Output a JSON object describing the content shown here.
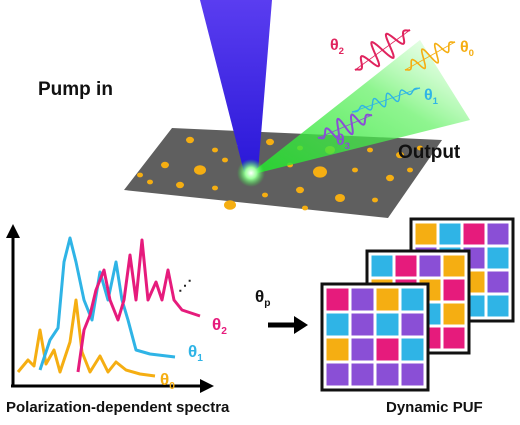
{
  "labels": {
    "pump": "Pump in",
    "output": "Output",
    "spectra_caption": "Polarization-dependent spectra",
    "puf_caption": "Dynamic PUF"
  },
  "output_angles": [
    {
      "symbol": "θ",
      "sub": "2"
    },
    {
      "symbol": "θ",
      "sub": "0"
    },
    {
      "symbol": "θ",
      "sub": "1"
    },
    {
      "symbol": "θ",
      "sub": "3"
    }
  ],
  "spectra_angles": [
    {
      "symbol": "θ",
      "sub": "2"
    },
    {
      "symbol": "θ",
      "sub": "1"
    },
    {
      "symbol": "θ",
      "sub": "0"
    }
  ],
  "arrow_label": {
    "symbol": "θ",
    "sub": "p"
  }
}
